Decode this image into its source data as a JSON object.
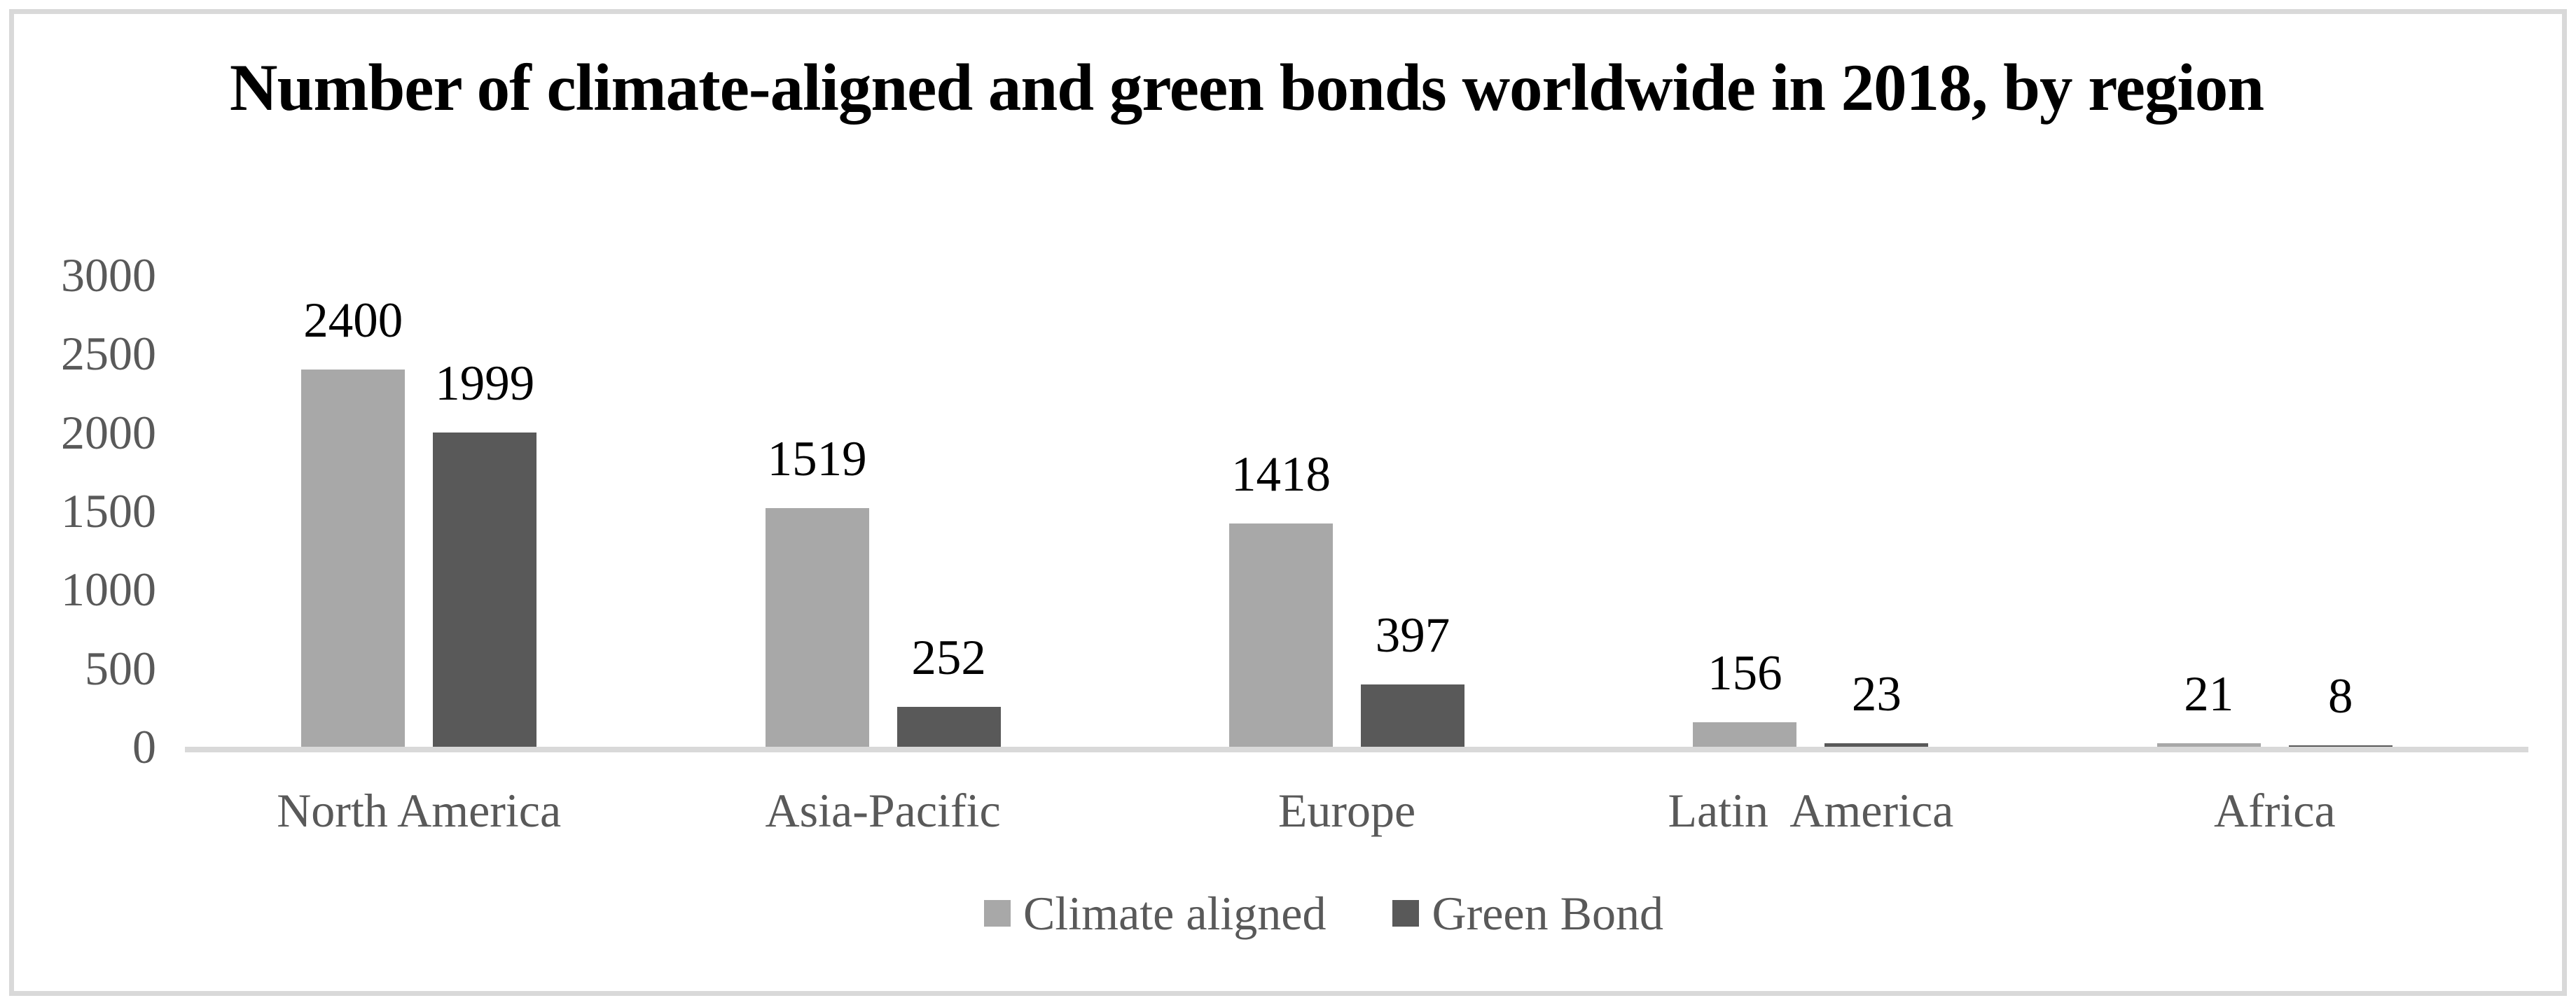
{
  "window": {
    "background_color": "#ffffff",
    "frame_color": "#d9d9d9"
  },
  "chart_data": {
    "type": "bar",
    "title": "Number of climate-aligned and green bonds worldwide in 2018, by region",
    "categories": [
      "North America",
      "Asia-Pacific",
      "Europe",
      "Latin  America",
      "Africa"
    ],
    "series": [
      {
        "name": "Climate aligned",
        "color": "#a8a8a8",
        "values": [
          2400,
          1519,
          1418,
          156,
          21
        ]
      },
      {
        "name": "Green Bond",
        "color": "#595959",
        "values": [
          1999,
          252,
          397,
          23,
          8
        ]
      }
    ],
    "data_labels": [
      [
        "2400",
        "1519",
        "1418",
        "156",
        "21"
      ],
      [
        "1999",
        "252",
        "397",
        "23",
        "8"
      ]
    ],
    "ylim": [
      0,
      3000
    ],
    "yticks": [
      "0",
      "500",
      "1000",
      "1500",
      "2000",
      "2500",
      "3000"
    ],
    "grid": false,
    "legend_position": "bottom",
    "title_color": "#000000",
    "data_label_color": "#000000",
    "tick_text_color": "#595959",
    "axis_line_color": "#d9d9d9"
  }
}
